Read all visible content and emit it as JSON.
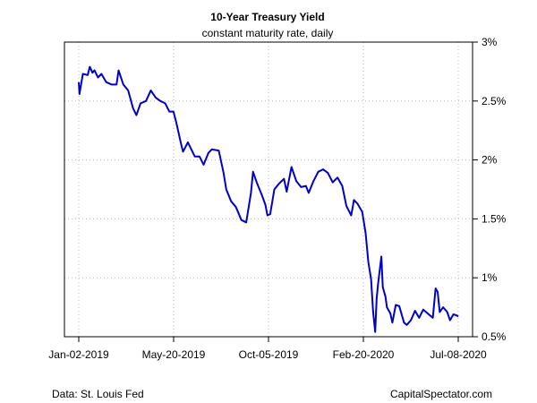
{
  "chart_data": {
    "type": "line",
    "title": "10-Year Treasury Yield",
    "subtitle": "constant maturity rate, daily",
    "xlabel": "",
    "ylabel": "",
    "x_ticks": [
      "Jan-02-2019",
      "May-20-2019",
      "Oct-05-2019",
      "Feb-20-2020",
      "Jul-08-2020"
    ],
    "y_ticks": [
      "0.5%",
      "1%",
      "1.5%",
      "2%",
      "2.5%",
      "3%"
    ],
    "y_tick_values": [
      0.5,
      1.0,
      1.5,
      2.0,
      2.5,
      3.0
    ],
    "xlim": [
      "2019-01-02",
      "2020-07-08"
    ],
    "ylim": [
      0.5,
      3.0
    ],
    "grid": true,
    "y_axis_side": "right",
    "series": [
      {
        "color": "#0000cc",
        "points": [
          [
            "2019-01-02",
            2.66
          ],
          [
            "2019-01-03",
            2.56
          ],
          [
            "2019-01-08",
            2.73
          ],
          [
            "2019-01-15",
            2.72
          ],
          [
            "2019-01-18",
            2.79
          ],
          [
            "2019-01-22",
            2.74
          ],
          [
            "2019-01-25",
            2.76
          ],
          [
            "2019-01-30",
            2.7
          ],
          [
            "2019-02-04",
            2.73
          ],
          [
            "2019-02-11",
            2.66
          ],
          [
            "2019-02-19",
            2.64
          ],
          [
            "2019-02-26",
            2.64
          ],
          [
            "2019-03-01",
            2.76
          ],
          [
            "2019-03-08",
            2.64
          ],
          [
            "2019-03-15",
            2.59
          ],
          [
            "2019-03-22",
            2.44
          ],
          [
            "2019-03-27",
            2.38
          ],
          [
            "2019-04-02",
            2.48
          ],
          [
            "2019-04-10",
            2.5
          ],
          [
            "2019-04-17",
            2.59
          ],
          [
            "2019-04-24",
            2.53
          ],
          [
            "2019-05-01",
            2.5
          ],
          [
            "2019-05-08",
            2.48
          ],
          [
            "2019-05-14",
            2.41
          ],
          [
            "2019-05-20",
            2.41
          ],
          [
            "2019-05-24",
            2.32
          ],
          [
            "2019-05-31",
            2.14
          ],
          [
            "2019-06-03",
            2.07
          ],
          [
            "2019-06-10",
            2.15
          ],
          [
            "2019-06-20",
            2.03
          ],
          [
            "2019-06-27",
            2.03
          ],
          [
            "2019-07-03",
            1.96
          ],
          [
            "2019-07-10",
            2.06
          ],
          [
            "2019-07-15",
            2.09
          ],
          [
            "2019-07-25",
            2.08
          ],
          [
            "2019-08-01",
            1.89
          ],
          [
            "2019-08-05",
            1.75
          ],
          [
            "2019-08-12",
            1.65
          ],
          [
            "2019-08-19",
            1.6
          ],
          [
            "2019-08-27",
            1.49
          ],
          [
            "2019-09-03",
            1.47
          ],
          [
            "2019-09-10",
            1.72
          ],
          [
            "2019-09-13",
            1.9
          ],
          [
            "2019-09-19",
            1.8
          ],
          [
            "2019-09-26",
            1.7
          ],
          [
            "2019-10-01",
            1.62
          ],
          [
            "2019-10-04",
            1.53
          ],
          [
            "2019-10-08",
            1.54
          ],
          [
            "2019-10-14",
            1.75
          ],
          [
            "2019-10-21",
            1.8
          ],
          [
            "2019-10-28",
            1.84
          ],
          [
            "2019-11-01",
            1.73
          ],
          [
            "2019-11-08",
            1.94
          ],
          [
            "2019-11-15",
            1.82
          ],
          [
            "2019-11-22",
            1.77
          ],
          [
            "2019-11-29",
            1.78
          ],
          [
            "2019-12-03",
            1.72
          ],
          [
            "2019-12-10",
            1.82
          ],
          [
            "2019-12-17",
            1.9
          ],
          [
            "2019-12-24",
            1.92
          ],
          [
            "2019-12-31",
            1.89
          ],
          [
            "2020-01-07",
            1.81
          ],
          [
            "2020-01-14",
            1.85
          ],
          [
            "2020-01-21",
            1.78
          ],
          [
            "2020-01-27",
            1.61
          ],
          [
            "2020-02-03",
            1.53
          ],
          [
            "2020-02-07",
            1.66
          ],
          [
            "2020-02-12",
            1.63
          ],
          [
            "2020-02-19",
            1.56
          ],
          [
            "2020-02-24",
            1.38
          ],
          [
            "2020-02-28",
            1.13
          ],
          [
            "2020-03-03",
            0.99
          ],
          [
            "2020-03-06",
            0.71
          ],
          [
            "2020-03-09",
            0.54
          ],
          [
            "2020-03-11",
            0.82
          ],
          [
            "2020-03-13",
            0.94
          ],
          [
            "2020-03-18",
            1.18
          ],
          [
            "2020-03-20",
            0.92
          ],
          [
            "2020-03-24",
            0.84
          ],
          [
            "2020-03-26",
            0.75
          ],
          [
            "2020-03-31",
            0.7
          ],
          [
            "2020-04-03",
            0.62
          ],
          [
            "2020-04-08",
            0.77
          ],
          [
            "2020-04-13",
            0.76
          ],
          [
            "2020-04-20",
            0.62
          ],
          [
            "2020-04-24",
            0.6
          ],
          [
            "2020-04-30",
            0.64
          ],
          [
            "2020-05-06",
            0.72
          ],
          [
            "2020-05-12",
            0.66
          ],
          [
            "2020-05-18",
            0.73
          ],
          [
            "2020-05-26",
            0.69
          ],
          [
            "2020-06-01",
            0.66
          ],
          [
            "2020-06-05",
            0.91
          ],
          [
            "2020-06-08",
            0.88
          ],
          [
            "2020-06-11",
            0.71
          ],
          [
            "2020-06-16",
            0.75
          ],
          [
            "2020-06-22",
            0.71
          ],
          [
            "2020-06-26",
            0.64
          ],
          [
            "2020-07-01",
            0.69
          ],
          [
            "2020-07-06",
            0.68
          ],
          [
            "2020-07-08",
            0.67
          ]
        ]
      }
    ]
  },
  "footer": {
    "source": "Data: St. Louis Fed",
    "brand": "CapitalSpectator.com"
  },
  "colors": {
    "line": "#0000cc",
    "grid": "#b8b8b8",
    "axis": "#000000"
  }
}
